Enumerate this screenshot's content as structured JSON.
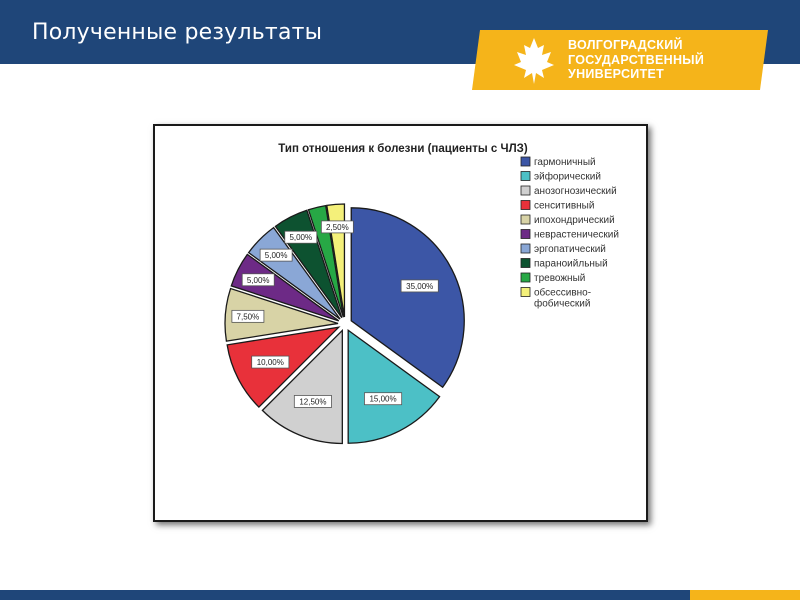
{
  "header": {
    "title": "Полученные результаты"
  },
  "logo": {
    "icon": "maple-leaf-icon",
    "lines": [
      "ВОЛГОГРАДСКИЙ",
      "ГОСУДАРСТВЕННЫЙ",
      "УНИВЕРСИТЕТ"
    ]
  },
  "colors": {
    "header_bg": "#1f4679",
    "accent": "#f5b41a"
  },
  "chart_data": {
    "type": "pie",
    "title": "Тип отношения к болезни (пациенты с ЧЛЗ)",
    "legend_position": "right",
    "exploded": true,
    "slices": [
      {
        "label": "гармоничный",
        "value": 35.0,
        "display": "35,00%",
        "color": "#3c56a6"
      },
      {
        "label": "эйфорический",
        "value": 15.0,
        "display": "15,00%",
        "color": "#4cc0c6"
      },
      {
        "label": "анозогнозический",
        "value": 12.5,
        "display": "12,50%",
        "color": "#d0d0d0"
      },
      {
        "label": "сенситивный",
        "value": 10.0,
        "display": "10,00%",
        "color": "#e8313a"
      },
      {
        "label": "ипохондрический",
        "value": 7.5,
        "display": "7,50%",
        "color": "#d8d3a6"
      },
      {
        "label": "неврастенический",
        "value": 5.0,
        "display": "5,00%",
        "color": "#6d2a86"
      },
      {
        "label": "эргопатический",
        "value": 5.0,
        "display": "5,00%",
        "color": "#8aa7d6"
      },
      {
        "label": "параноийльный",
        "value": 5.0,
        "display": "5,00%",
        "color": "#0d5230"
      },
      {
        "label": "тревожный",
        "value": 2.5,
        "display": "",
        "color": "#27a845"
      },
      {
        "label": "обсессивно-\nфобический",
        "value": 2.5,
        "display": "2,50%",
        "color": "#f4f07a"
      }
    ]
  }
}
